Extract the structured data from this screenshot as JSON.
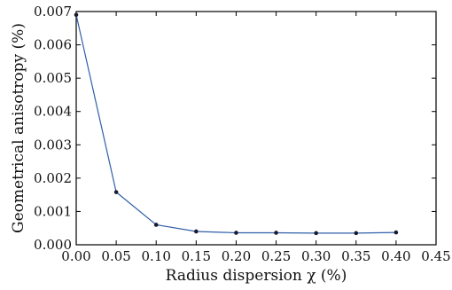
{
  "chart_data": {
    "type": "line",
    "xlabel": "Radius dispersion χ (%)",
    "ylabel": "Geometrical anisotropy (%)",
    "xlim": [
      0.0,
      0.45
    ],
    "ylim": [
      0.0,
      0.007
    ],
    "xticks": [
      "0.00",
      "0.05",
      "0.10",
      "0.15",
      "0.20",
      "0.25",
      "0.30",
      "0.35",
      "0.40",
      "0.45"
    ],
    "yticks": [
      "0.000",
      "0.001",
      "0.002",
      "0.003",
      "0.004",
      "0.005",
      "0.006",
      "0.007"
    ],
    "grid": false,
    "series": [
      {
        "x": [
          0.0,
          0.05,
          0.1,
          0.15,
          0.2,
          0.25,
          0.3,
          0.35,
          0.4
        ],
        "y": [
          0.0069,
          0.00158,
          0.0006,
          0.0004,
          0.00036,
          0.00036,
          0.00035,
          0.00035,
          0.00037
        ],
        "line_color": "#2f5fa8",
        "marker_color": "#1a1a2e"
      }
    ]
  }
}
